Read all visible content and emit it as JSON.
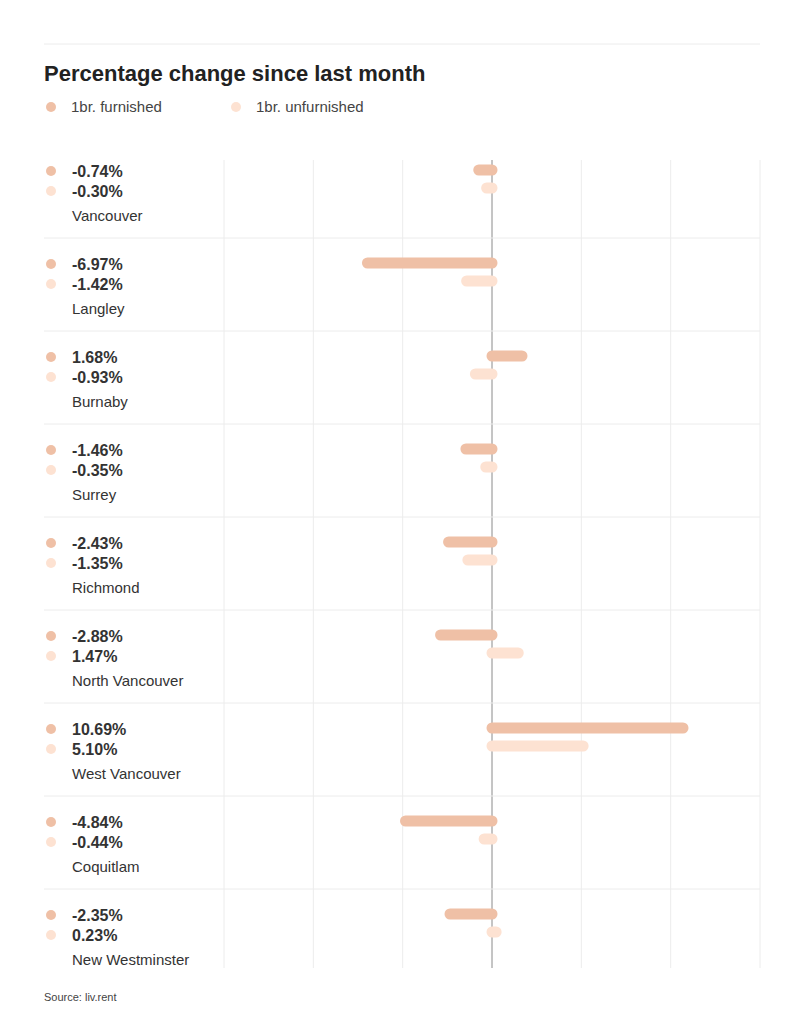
{
  "chart_data": {
    "type": "bar",
    "orientation": "horizontal",
    "title": "Percentage change since last month",
    "categories": [
      "Vancouver",
      "Langley",
      "Burnaby",
      "Surrey",
      "Richmond",
      "North Vancouver",
      "West Vancouver",
      "Coquitlam",
      "New Westminster"
    ],
    "series": [
      {
        "name": "1br. furnished",
        "color": "#efc0a6",
        "values": [
          -0.74,
          -6.97,
          1.68,
          -1.46,
          -2.43,
          -2.88,
          10.69,
          -4.84,
          -2.35
        ],
        "value_labels": [
          "-0.74%",
          "-6.97%",
          "1.68%",
          "-1.46%",
          "-2.43%",
          "-2.88%",
          "10.69%",
          "-4.84%",
          "-2.35%"
        ]
      },
      {
        "name": "1br. unfurnished",
        "color": "#fde2d2",
        "values": [
          -0.3,
          -1.42,
          -0.93,
          -0.35,
          -1.35,
          1.47,
          5.1,
          -0.44,
          0.23
        ],
        "value_labels": [
          "-0.30%",
          "-1.42%",
          "-0.93%",
          "-0.35%",
          "-1.35%",
          "1.47%",
          "5.10%",
          "-0.44%",
          "0.23%"
        ]
      }
    ],
    "xlim": [
      -15,
      15
    ],
    "xticks": [
      -15,
      -10,
      -5,
      0,
      5,
      10,
      15
    ],
    "grid": true,
    "tick_labels": false,
    "legend": "top-left",
    "data_labels": true,
    "source": "Source: liv.rent"
  }
}
